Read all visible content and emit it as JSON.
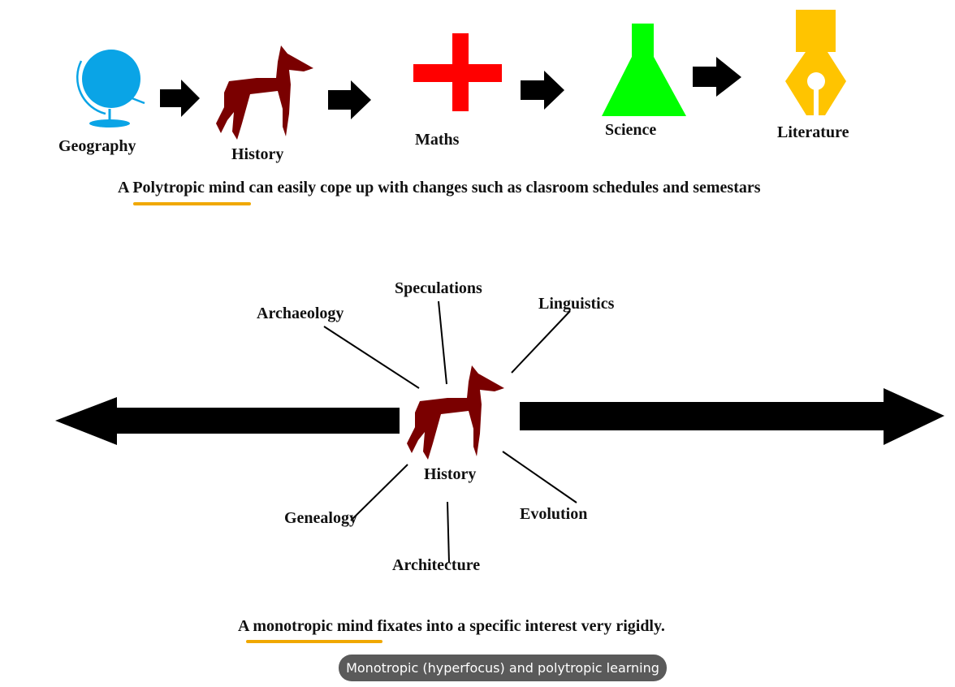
{
  "top_sequence": {
    "subjects": [
      "Geography",
      "History",
      "Maths",
      "Science",
      "Literature"
    ]
  },
  "polytropic_sentence": {
    "prefix": "A",
    "highlight": "Polytropic mind",
    "rest": "can easily cope up with changes such as clasroom schedules and semestars"
  },
  "radial": {
    "center": "History",
    "topics": [
      "Speculations",
      "Archaeology",
      "Linguistics",
      "Genealogy",
      "Evolution",
      "Architecture"
    ]
  },
  "monotropic_sentence": {
    "prefix": "A",
    "highlight": "monotropic mind",
    "rest": "fixates into a specific interest very rigidly."
  },
  "caption": "Monotropic (hyperfocus) and polytropic learning",
  "colors": {
    "globe": "#0aa4e6",
    "horse": "#7a0000",
    "plus": "#ff0000",
    "flask": "#00ff00",
    "pen": "#ffc400",
    "underline": "#f0a800",
    "arrow": "#000000"
  }
}
